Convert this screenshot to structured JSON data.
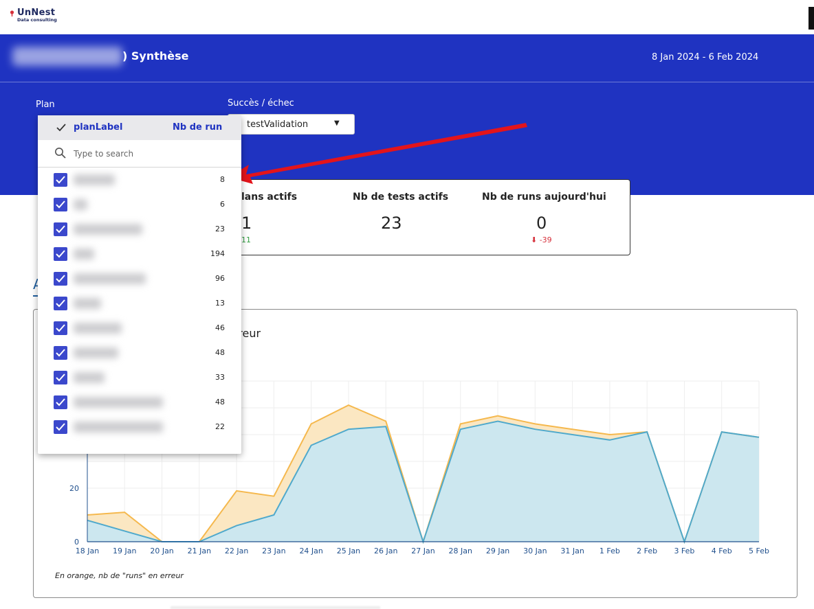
{
  "brand": {
    "name": "UnNest",
    "tagline": "Data consulting"
  },
  "header": {
    "title": ") Synthèse",
    "date_range": "8 Jan 2024 - 6 Feb 2024"
  },
  "filters": {
    "plan_label": "Plan",
    "success_label": "Succès / échec",
    "success_value": "testValidation"
  },
  "dropdown": {
    "col_label": "planLabel",
    "col_count": "Nb de run",
    "search_placeholder": "Type to search",
    "items": [
      {
        "count": "8"
      },
      {
        "count": "6"
      },
      {
        "count": "23"
      },
      {
        "count": "194"
      },
      {
        "count": "96"
      },
      {
        "count": "13"
      },
      {
        "count": "46"
      },
      {
        "count": "48"
      },
      {
        "count": "33"
      },
      {
        "count": "48"
      },
      {
        "count": "22"
      }
    ]
  },
  "kpis": [
    {
      "title": "lans actifs",
      "value": "1",
      "delta": "11",
      "delta_color": "#2e9b3d"
    },
    {
      "title": "Nb de tests actifs",
      "value": "23",
      "delta": "",
      "delta_color": "#2e9b3d"
    },
    {
      "title": "Nb de runs aujourd'hui",
      "value": "0",
      "delta": "⬇ -39",
      "delta_color": "#d6303b"
    }
  ],
  "tab": {
    "label": "A"
  },
  "chart": {
    "title": "rreur",
    "note": "En orange, nb de \"runs\" en erreur"
  },
  "chart_data": {
    "type": "area",
    "title": "rreur",
    "xlabel": "",
    "ylabel": "",
    "categories": [
      "18 Jan",
      "19 Jan",
      "20 Jan",
      "21 Jan",
      "22 Jan",
      "23 Jan",
      "24 Jan",
      "25 Jan",
      "26 Jan",
      "27 Jan",
      "28 Jan",
      "29 Jan",
      "30 Jan",
      "31 Jan",
      "1 Feb",
      "2 Feb",
      "3 Feb",
      "4 Feb",
      "5 Feb"
    ],
    "y_ticks": [
      0,
      20
    ],
    "ylim": [
      0,
      60
    ],
    "grid": true,
    "series": [
      {
        "values": [
          8,
          4,
          0,
          0,
          6,
          10,
          36,
          42,
          43,
          0,
          42,
          45,
          42,
          40,
          38,
          41,
          0,
          41,
          39
        ],
        "color": "#4fa9cc",
        "fill": "#c9e7f1"
      },
      {
        "values": [
          10,
          11,
          0,
          0,
          19,
          17,
          44,
          51,
          45,
          0,
          44,
          47,
          44,
          42,
          40,
          41,
          0,
          41,
          39
        ],
        "color": "#f5b84d",
        "fill": "#fbe6bf"
      }
    ]
  },
  "colors": {
    "banner": "#1f33c1",
    "accent": "#1f33c1",
    "arrow": "#e3141b"
  },
  "icons": [
    "logo-pin-icon",
    "checkmark-icon",
    "search-icon",
    "caret-down-icon",
    "checkbox-checked-icon",
    "annotation-arrow-icon"
  ]
}
